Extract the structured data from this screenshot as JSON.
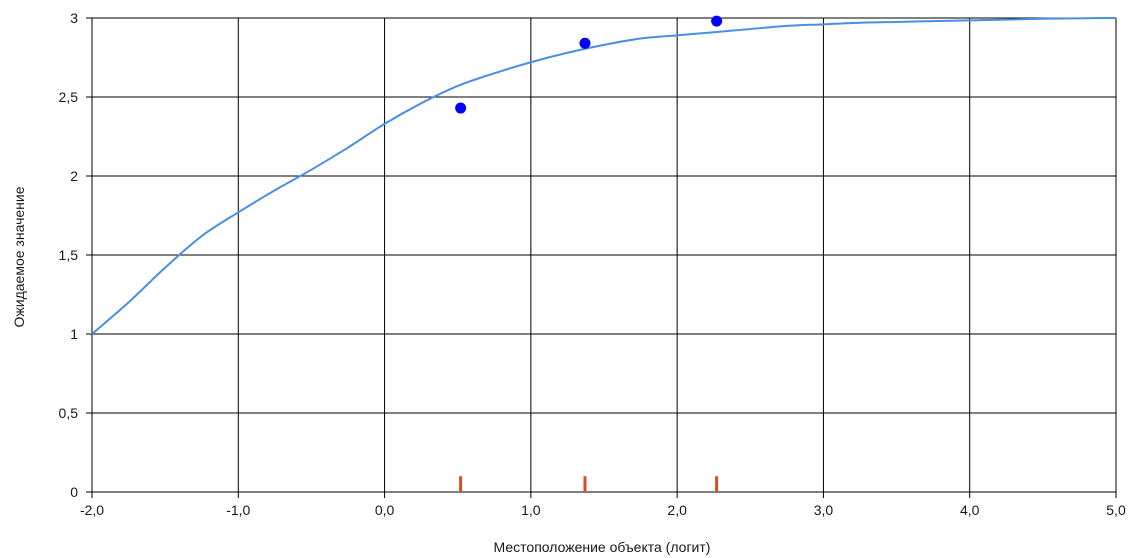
{
  "chart_data": {
    "type": "line",
    "xlabel": "Местоположение объекта (логит)",
    "ylabel": "Ожидаемое значение",
    "xlim": [
      -2.0,
      5.0
    ],
    "ylim": [
      0,
      3
    ],
    "x_ticks": [
      -2.0,
      -1.0,
      0.0,
      1.0,
      2.0,
      3.0,
      4.0,
      5.0
    ],
    "x_tick_labels": [
      "-2,0",
      "-1,0",
      "0,0",
      "1,0",
      "2,0",
      "3,0",
      "4,0",
      "5,0"
    ],
    "y_ticks": [
      0,
      0.5,
      1,
      1.5,
      2,
      2.5,
      3
    ],
    "y_tick_labels": [
      "0",
      "0,5",
      "1",
      "1,5",
      "2",
      "2,5",
      "3"
    ],
    "grid": true,
    "colors": {
      "curve": "#4a90e2",
      "points": "#0000ff",
      "rug": "#d2521f",
      "grid": "#000000"
    },
    "curve": {
      "x": [
        -2.0,
        -1.75,
        -1.5,
        -1.25,
        -1.0,
        -0.75,
        -0.5,
        -0.25,
        0.0,
        0.25,
        0.5,
        0.75,
        1.0,
        1.25,
        1.5,
        1.75,
        2.0,
        2.25,
        2.5,
        2.75,
        3.0,
        3.25,
        3.5,
        3.75,
        4.0,
        4.25,
        4.5,
        4.75,
        5.0
      ],
      "y": [
        1.0,
        1.2,
        1.42,
        1.62,
        1.77,
        1.91,
        2.04,
        2.18,
        2.33,
        2.46,
        2.57,
        2.65,
        2.72,
        2.78,
        2.83,
        2.87,
        2.89,
        2.91,
        2.93,
        2.95,
        2.96,
        2.97,
        2.975,
        2.98,
        2.985,
        2.99,
        2.995,
        2.998,
        3.0
      ]
    },
    "points": {
      "x": [
        0.52,
        1.37,
        2.27
      ],
      "y": [
        2.43,
        2.84,
        2.98
      ]
    },
    "rug": {
      "x": [
        0.52,
        1.37,
        2.27
      ],
      "height": 0.1
    }
  }
}
